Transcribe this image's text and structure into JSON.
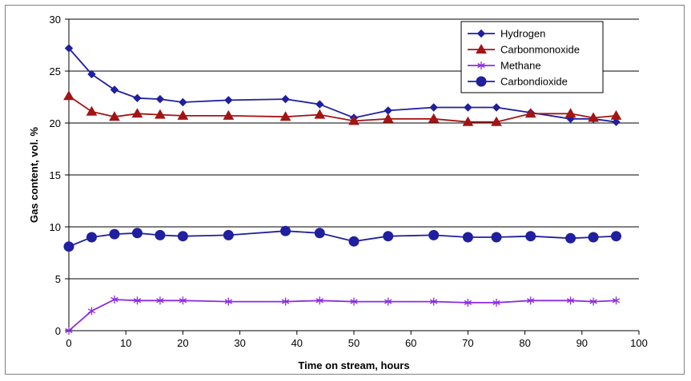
{
  "chart_data": {
    "type": "line",
    "title": "",
    "xlabel": "Time  on stream, hours",
    "ylabel": "Gas content, vol. %",
    "xlim": [
      0,
      100
    ],
    "ylim": [
      0,
      30
    ],
    "xticks": [
      0,
      10,
      20,
      30,
      40,
      50,
      60,
      70,
      80,
      90,
      100
    ],
    "yticks": [
      0,
      5,
      10,
      15,
      20,
      25,
      30
    ],
    "grid": "horizontal",
    "legend_position": "top-right",
    "series": [
      {
        "name": "Hydrogen",
        "color": "#1f1fa0",
        "marker": "diamond",
        "x": [
          0,
          4,
          8,
          12,
          16,
          20,
          28,
          38,
          44,
          50,
          56,
          64,
          70,
          75,
          81,
          88,
          92,
          96
        ],
        "y": [
          27.2,
          24.7,
          23.2,
          22.4,
          22.3,
          22.0,
          22.2,
          22.3,
          21.8,
          20.5,
          21.2,
          21.5,
          21.5,
          21.5,
          21.0,
          20.4,
          20.4,
          20.1
        ]
      },
      {
        "name": "Carbonmonoxide",
        "color": "#a31414",
        "marker": "triangle",
        "x": [
          0,
          4,
          8,
          12,
          16,
          20,
          28,
          38,
          44,
          50,
          56,
          64,
          70,
          75,
          81,
          88,
          92,
          96
        ],
        "y": [
          22.6,
          21.1,
          20.6,
          20.9,
          20.8,
          20.7,
          20.7,
          20.6,
          20.8,
          20.2,
          20.4,
          20.4,
          20.1,
          20.1,
          20.9,
          20.9,
          20.5,
          20.7
        ]
      },
      {
        "name": "Methane",
        "color": "#8a2be2",
        "marker": "asterisk",
        "x": [
          0,
          4,
          8,
          12,
          16,
          20,
          28,
          38,
          44,
          50,
          56,
          64,
          70,
          75,
          81,
          88,
          92,
          96
        ],
        "y": [
          0.0,
          1.9,
          3.0,
          2.9,
          2.9,
          2.9,
          2.8,
          2.8,
          2.9,
          2.8,
          2.8,
          2.8,
          2.7,
          2.7,
          2.9,
          2.9,
          2.8,
          2.9
        ]
      },
      {
        "name": "Carbondioxide",
        "color": "#1f1fa0",
        "marker": "circle",
        "x": [
          0,
          4,
          8,
          12,
          16,
          20,
          28,
          38,
          44,
          50,
          56,
          64,
          70,
          75,
          81,
          88,
          92,
          96
        ],
        "y": [
          8.1,
          9.0,
          9.3,
          9.4,
          9.2,
          9.1,
          9.2,
          9.6,
          9.4,
          8.6,
          9.1,
          9.2,
          9.0,
          9.0,
          9.1,
          8.9,
          9.0,
          9.1
        ]
      }
    ]
  }
}
